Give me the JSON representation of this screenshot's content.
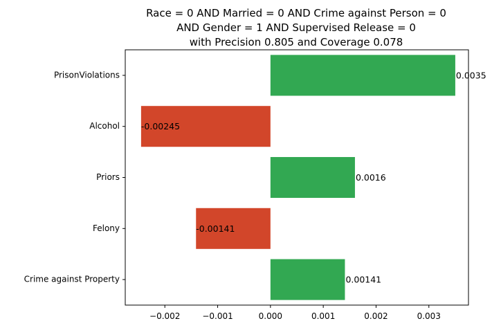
{
  "chart_data": {
    "type": "bar",
    "orientation": "horizontal",
    "title_lines": [
      "Race = 0 AND Married = 0 AND Crime against Person = 0",
      "AND Gender = 1 AND Supervised Release = 0",
      "with Precision 0.805 and Coverage 0.078"
    ],
    "categories": [
      "PrisonViolations",
      "Alcohol",
      "Priors",
      "Felony",
      "Crime against Property"
    ],
    "values": [
      0.0035,
      -0.00245,
      0.0016,
      -0.00141,
      0.00141
    ],
    "value_labels": [
      "0.0035",
      "-0.00245",
      "0.0016",
      "-0.00141",
      "0.00141"
    ],
    "xlim": [
      -0.00275,
      0.00375
    ],
    "xticks": [
      -0.002,
      -0.001,
      0.0,
      0.001,
      0.002,
      0.003
    ],
    "xtick_labels": [
      "−0.002",
      "−0.001",
      "0.000",
      "0.001",
      "0.002",
      "0.003"
    ],
    "positive_color": "#32a852",
    "negative_color": "#d2462a",
    "grid": false,
    "legend": "none"
  }
}
